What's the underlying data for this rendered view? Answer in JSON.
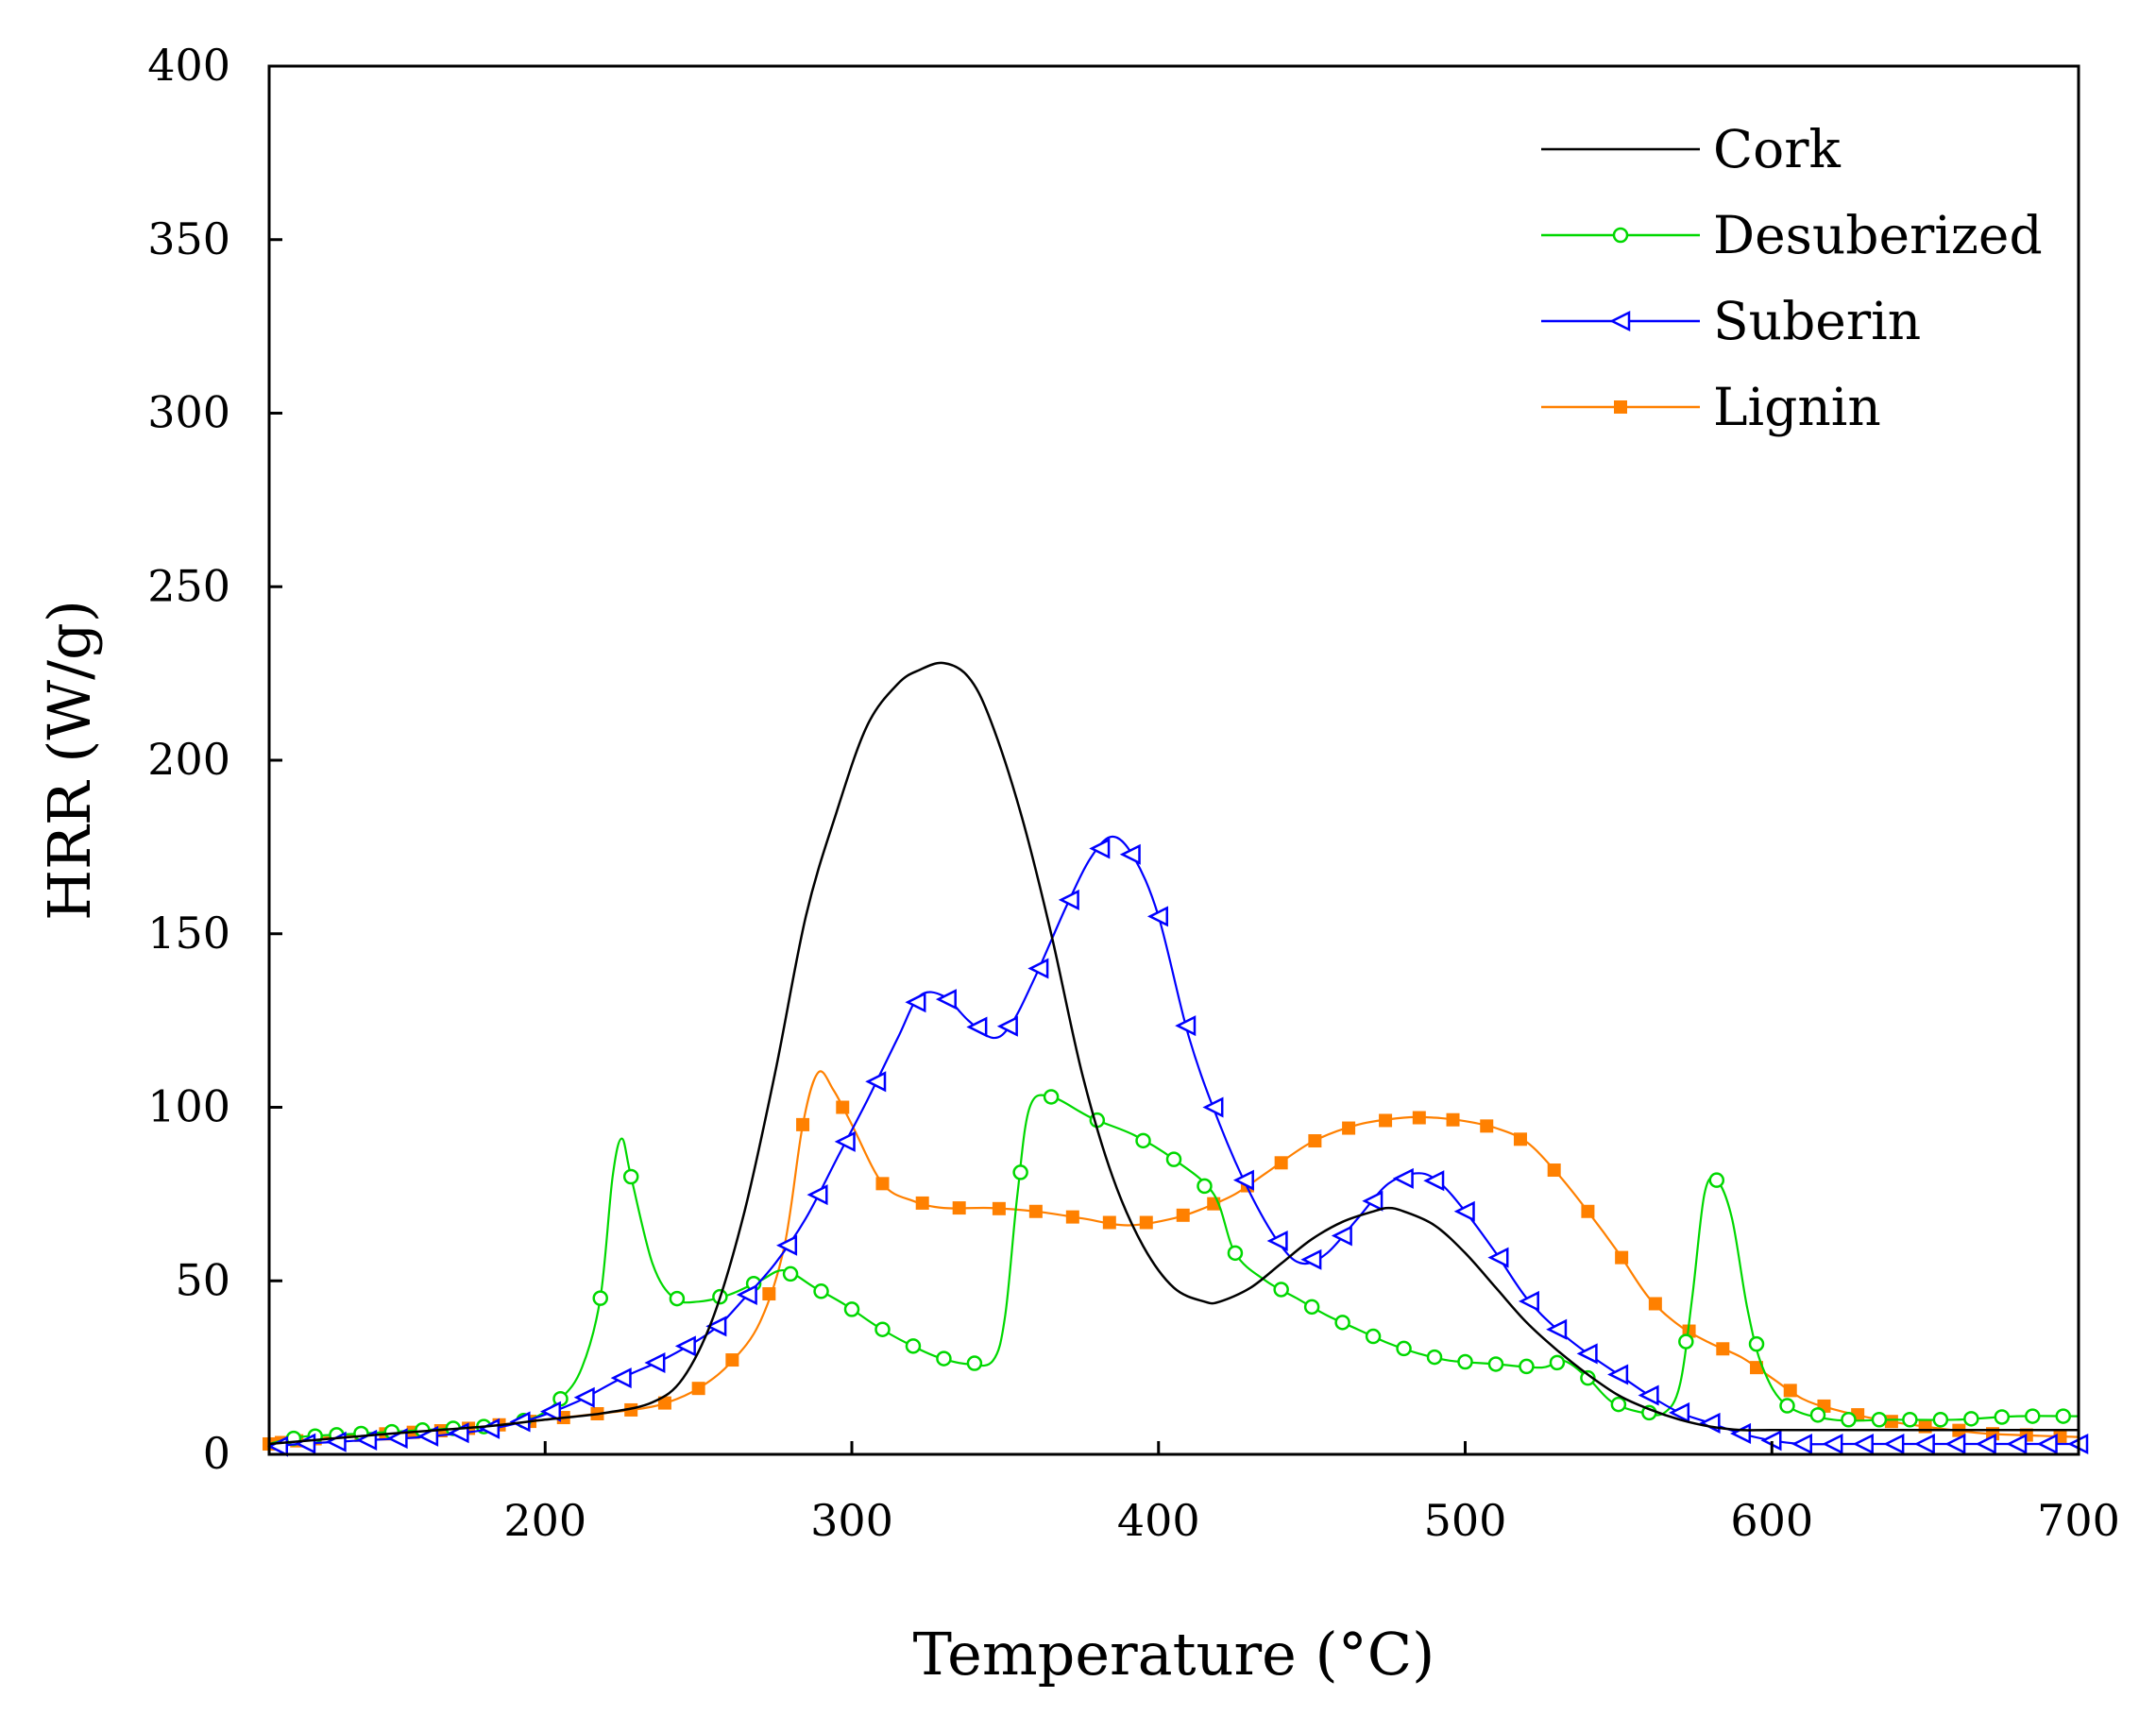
{
  "chart_data": {
    "type": "line",
    "xlabel": "Temperature (°C)",
    "ylabel": "HRR (W/g)",
    "xlim": [
      110,
      700
    ],
    "ylim": [
      0,
      400
    ],
    "x_ticks": [
      "200",
      "300",
      "400",
      "500",
      "600",
      "700"
    ],
    "y_ticks": [
      "0",
      "50",
      "100",
      "150",
      "200",
      "250",
      "300",
      "350",
      "400"
    ],
    "grid": false,
    "legend_position": "top-right",
    "series": [
      {
        "name": "Cork",
        "color": "#000000",
        "marker": "none",
        "points": [
          [
            110,
            3
          ],
          [
            150,
            6
          ],
          [
            180,
            8
          ],
          [
            200,
            10
          ],
          [
            220,
            12
          ],
          [
            235,
            15
          ],
          [
            245,
            22
          ],
          [
            255,
            40
          ],
          [
            265,
            70
          ],
          [
            275,
            110
          ],
          [
            285,
            155
          ],
          [
            295,
            185
          ],
          [
            305,
            210
          ],
          [
            315,
            222
          ],
          [
            322,
            226
          ],
          [
            330,
            228
          ],
          [
            338,
            224
          ],
          [
            345,
            212
          ],
          [
            355,
            185
          ],
          [
            365,
            150
          ],
          [
            375,
            110
          ],
          [
            385,
            80
          ],
          [
            395,
            60
          ],
          [
            405,
            48
          ],
          [
            415,
            44
          ],
          [
            420,
            44
          ],
          [
            430,
            48
          ],
          [
            440,
            55
          ],
          [
            450,
            62
          ],
          [
            460,
            67
          ],
          [
            470,
            70
          ],
          [
            475,
            71
          ],
          [
            480,
            70
          ],
          [
            490,
            66
          ],
          [
            500,
            58
          ],
          [
            510,
            48
          ],
          [
            520,
            38
          ],
          [
            530,
            30
          ],
          [
            540,
            23
          ],
          [
            550,
            17
          ],
          [
            560,
            13
          ],
          [
            570,
            10
          ],
          [
            580,
            8
          ],
          [
            590,
            7
          ],
          [
            600,
            7
          ],
          [
            650,
            7
          ],
          [
            700,
            7
          ]
        ]
      },
      {
        "name": "Desuberized",
        "color": "#00d800",
        "marker": "circle-open",
        "points": [
          [
            110,
            3
          ],
          [
            120,
            5
          ],
          [
            140,
            6
          ],
          [
            160,
            7
          ],
          [
            180,
            8
          ],
          [
            195,
            10
          ],
          [
            205,
            16
          ],
          [
            212,
            25
          ],
          [
            218,
            45
          ],
          [
            222,
            80
          ],
          [
            225,
            91
          ],
          [
            228,
            80
          ],
          [
            235,
            55
          ],
          [
            242,
            45
          ],
          [
            250,
            44
          ],
          [
            260,
            46
          ],
          [
            270,
            50
          ],
          [
            278,
            53
          ],
          [
            288,
            48
          ],
          [
            298,
            43
          ],
          [
            308,
            37
          ],
          [
            318,
            32
          ],
          [
            328,
            28
          ],
          [
            338,
            26
          ],
          [
            346,
            27
          ],
          [
            350,
            40
          ],
          [
            354,
            75
          ],
          [
            358,
            100
          ],
          [
            365,
            103
          ],
          [
            378,
            97
          ],
          [
            392,
            92
          ],
          [
            405,
            85
          ],
          [
            418,
            75
          ],
          [
            425,
            58
          ],
          [
            435,
            50
          ],
          [
            445,
            45
          ],
          [
            455,
            40
          ],
          [
            465,
            36
          ],
          [
            475,
            32
          ],
          [
            485,
            29
          ],
          [
            495,
            27
          ],
          [
            510,
            26
          ],
          [
            525,
            25
          ],
          [
            532,
            27
          ],
          [
            540,
            22
          ],
          [
            548,
            15
          ],
          [
            558,
            12
          ],
          [
            565,
            12
          ],
          [
            570,
            20
          ],
          [
            574,
            45
          ],
          [
            578,
            75
          ],
          [
            582,
            79
          ],
          [
            587,
            68
          ],
          [
            592,
            42
          ],
          [
            597,
            25
          ],
          [
            605,
            14
          ],
          [
            620,
            10
          ],
          [
            640,
            10
          ],
          [
            660,
            10
          ],
          [
            680,
            11
          ],
          [
            700,
            11
          ]
        ],
        "marker_x": [
          118,
          125,
          132,
          140,
          150,
          160,
          170,
          180,
          193,
          205,
          218,
          228,
          243,
          257,
          268,
          280,
          290,
          300,
          310,
          320,
          330,
          340,
          355,
          365,
          380,
          395,
          405,
          415,
          425,
          440,
          450,
          460,
          470,
          480,
          490,
          500,
          510,
          520,
          530,
          540,
          550,
          560,
          572,
          582,
          595,
          605,
          615,
          625,
          635,
          645,
          655,
          665,
          675,
          685,
          695
        ]
      },
      {
        "name": "Suberin",
        "color": "#0000ff",
        "marker": "triangle-left-open",
        "points": [
          [
            110,
            2
          ],
          [
            120,
            3
          ],
          [
            140,
            4
          ],
          [
            160,
            5
          ],
          [
            180,
            7
          ],
          [
            195,
            10
          ],
          [
            210,
            15
          ],
          [
            225,
            22
          ],
          [
            240,
            28
          ],
          [
            255,
            36
          ],
          [
            265,
            45
          ],
          [
            275,
            55
          ],
          [
            285,
            68
          ],
          [
            295,
            85
          ],
          [
            305,
            102
          ],
          [
            315,
            120
          ],
          [
            322,
            132
          ],
          [
            330,
            132
          ],
          [
            338,
            125
          ],
          [
            346,
            120
          ],
          [
            352,
            124
          ],
          [
            360,
            138
          ],
          [
            370,
            158
          ],
          [
            378,
            172
          ],
          [
            385,
            178
          ],
          [
            392,
            172
          ],
          [
            400,
            155
          ],
          [
            410,
            120
          ],
          [
            420,
            95
          ],
          [
            430,
            75
          ],
          [
            440,
            60
          ],
          [
            447,
            55
          ],
          [
            455,
            58
          ],
          [
            465,
            68
          ],
          [
            475,
            78
          ],
          [
            485,
            81
          ],
          [
            492,
            78
          ],
          [
            500,
            70
          ],
          [
            510,
            58
          ],
          [
            520,
            45
          ],
          [
            530,
            36
          ],
          [
            540,
            29
          ],
          [
            550,
            23
          ],
          [
            560,
            17
          ],
          [
            570,
            12
          ],
          [
            580,
            9
          ],
          [
            590,
            6
          ],
          [
            600,
            4
          ],
          [
            610,
            3
          ],
          [
            625,
            3
          ],
          [
            650,
            3
          ],
          [
            675,
            3
          ],
          [
            700,
            3
          ]
        ],
        "marker_x": [
          113,
          122,
          132,
          142,
          152,
          162,
          172,
          182,
          192,
          202,
          213,
          225,
          236,
          246,
          256,
          266,
          279,
          289,
          298,
          308,
          321,
          331,
          341,
          351,
          361,
          371,
          381,
          391,
          400,
          409,
          418,
          428,
          439,
          450,
          460,
          470,
          480,
          490,
          500,
          511,
          521,
          530,
          540,
          550,
          560,
          570,
          580,
          590,
          600,
          610,
          620,
          630,
          640,
          650,
          660,
          670,
          680,
          690,
          700
        ]
      },
      {
        "name": "Lignin",
        "color": "#ff8000",
        "marker": "square-filled",
        "points": [
          [
            110,
            3
          ],
          [
            130,
            5
          ],
          [
            150,
            6
          ],
          [
            170,
            7
          ],
          [
            190,
            9
          ],
          [
            210,
            11
          ],
          [
            230,
            13
          ],
          [
            240,
            15
          ],
          [
            250,
            19
          ],
          [
            260,
            26
          ],
          [
            270,
            38
          ],
          [
            278,
            60
          ],
          [
            284,
            95
          ],
          [
            289,
            110
          ],
          [
            294,
            105
          ],
          [
            300,
            95
          ],
          [
            310,
            78
          ],
          [
            320,
            73
          ],
          [
            330,
            71
          ],
          [
            345,
            71
          ],
          [
            360,
            70
          ],
          [
            375,
            68
          ],
          [
            390,
            66
          ],
          [
            405,
            68
          ],
          [
            415,
            71
          ],
          [
            425,
            75
          ],
          [
            435,
            81
          ],
          [
            450,
            90
          ],
          [
            465,
            95
          ],
          [
            480,
            97
          ],
          [
            490,
            97
          ],
          [
            500,
            96
          ],
          [
            510,
            94
          ],
          [
            520,
            90
          ],
          [
            530,
            81
          ],
          [
            540,
            70
          ],
          [
            550,
            58
          ],
          [
            560,
            45
          ],
          [
            570,
            37
          ],
          [
            580,
            32
          ],
          [
            590,
            28
          ],
          [
            600,
            22
          ],
          [
            610,
            16
          ],
          [
            620,
            13
          ],
          [
            635,
            10
          ],
          [
            650,
            8
          ],
          [
            670,
            6
          ],
          [
            700,
            5
          ]
        ],
        "marker_x": [
          110,
          114,
          119,
          125,
          132,
          140,
          148,
          157,
          166,
          175,
          185,
          195,
          206,
          217,
          228,
          239,
          250,
          261,
          273,
          284,
          297,
          310,
          323,
          335,
          348,
          360,
          372,
          384,
          396,
          408,
          418,
          429,
          440,
          451,
          462,
          474,
          485,
          496,
          507,
          518,
          529,
          540,
          551,
          562,
          573,
          584,
          595,
          606,
          617,
          628,
          639,
          650,
          661,
          672,
          683,
          694
        ]
      }
    ]
  }
}
